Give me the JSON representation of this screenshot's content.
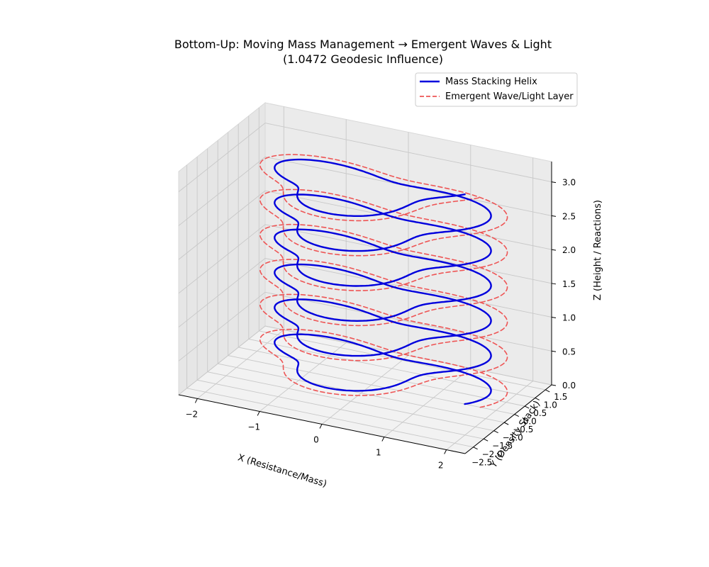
{
  "chart_data": {
    "type": "line",
    "projection": "3d",
    "title": "Bottom-Up: Moving Mass Management → Emergent Waves & Light",
    "subtitle": "(1.0472 Geodesic Influence)",
    "xlabel": "X (Resistance/Mass)",
    "ylabel": "Y (Density Stack)",
    "zlabel": "Z (Height / Reactions)",
    "xlim": [
      -2.3,
      2.3
    ],
    "ylim": [
      -2.4,
      1.8
    ],
    "zlim": [
      0.0,
      3.3
    ],
    "xticks": [
      "−2",
      "−1",
      "0",
      "1",
      "2"
    ],
    "yticks": [
      "1.5",
      "1.0",
      "0.5",
      "0.0",
      "−0.5",
      "−1.0",
      "−1.5",
      "−2.0",
      "−2.5"
    ],
    "zticks": [
      "0.0",
      "0.5",
      "1.0",
      "1.5",
      "2.0",
      "2.5",
      "3.0"
    ],
    "grid": true,
    "legend_position": "top-right",
    "series": [
      {
        "name": "Mass Stacking Helix",
        "color": "#0000dd",
        "style": "solid",
        "param_t": [
          0,
          37.7
        ],
        "radius": 1.5,
        "radial_modulation": 0.35,
        "modulation_frequency": 3,
        "z_range": [
          0.0,
          3.1
        ]
      },
      {
        "name": "Emergent Wave/Light Layer",
        "color": "#ee5555",
        "style": "dashed",
        "param_t": [
          0,
          37.7
        ],
        "radius": 1.75,
        "radial_modulation": 0.35,
        "modulation_frequency": 3,
        "z_range": [
          0.0,
          3.1
        ]
      }
    ]
  }
}
